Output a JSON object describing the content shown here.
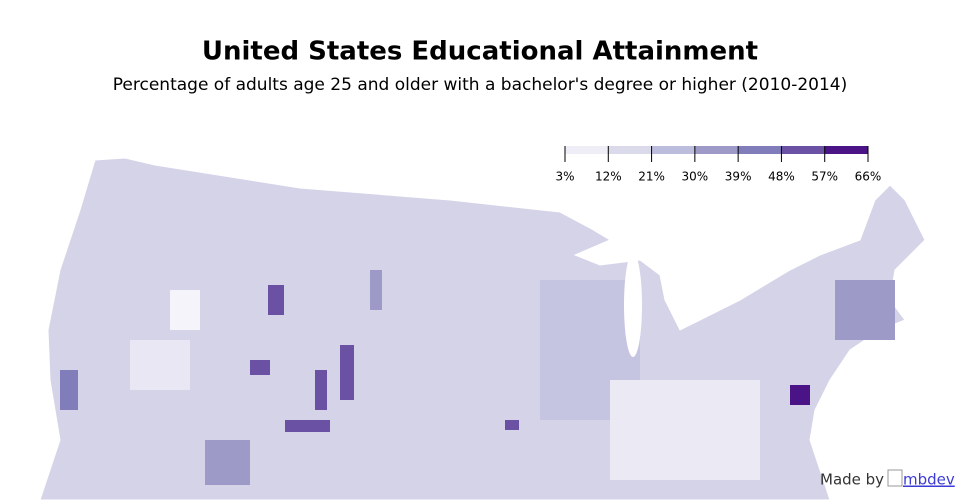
{
  "map": {
    "title": "United States Educational Attainment",
    "subtitle": "Percentage of adults age 25 and older with a bachelor's degree or higher (2010-2014)",
    "legend": {
      "colors": [
        "#efedf5",
        "#dadaeb",
        "#bcbddc",
        "#9e9ac8",
        "#807dba",
        "#6a51a3",
        "#4a1486"
      ],
      "ticks": [
        {
          "value": 3,
          "label": "3%"
        },
        {
          "value": 12,
          "label": "12%"
        },
        {
          "value": 21,
          "label": "21%"
        },
        {
          "value": 30,
          "label": "30%"
        },
        {
          "value": 39,
          "label": "39%"
        },
        {
          "value": 48,
          "label": "48%"
        },
        {
          "value": 57,
          "label": "57%"
        },
        {
          "value": 66,
          "label": "66%"
        }
      ]
    },
    "footer": {
      "text": "Made by",
      "link": "mbdev"
    }
  }
}
